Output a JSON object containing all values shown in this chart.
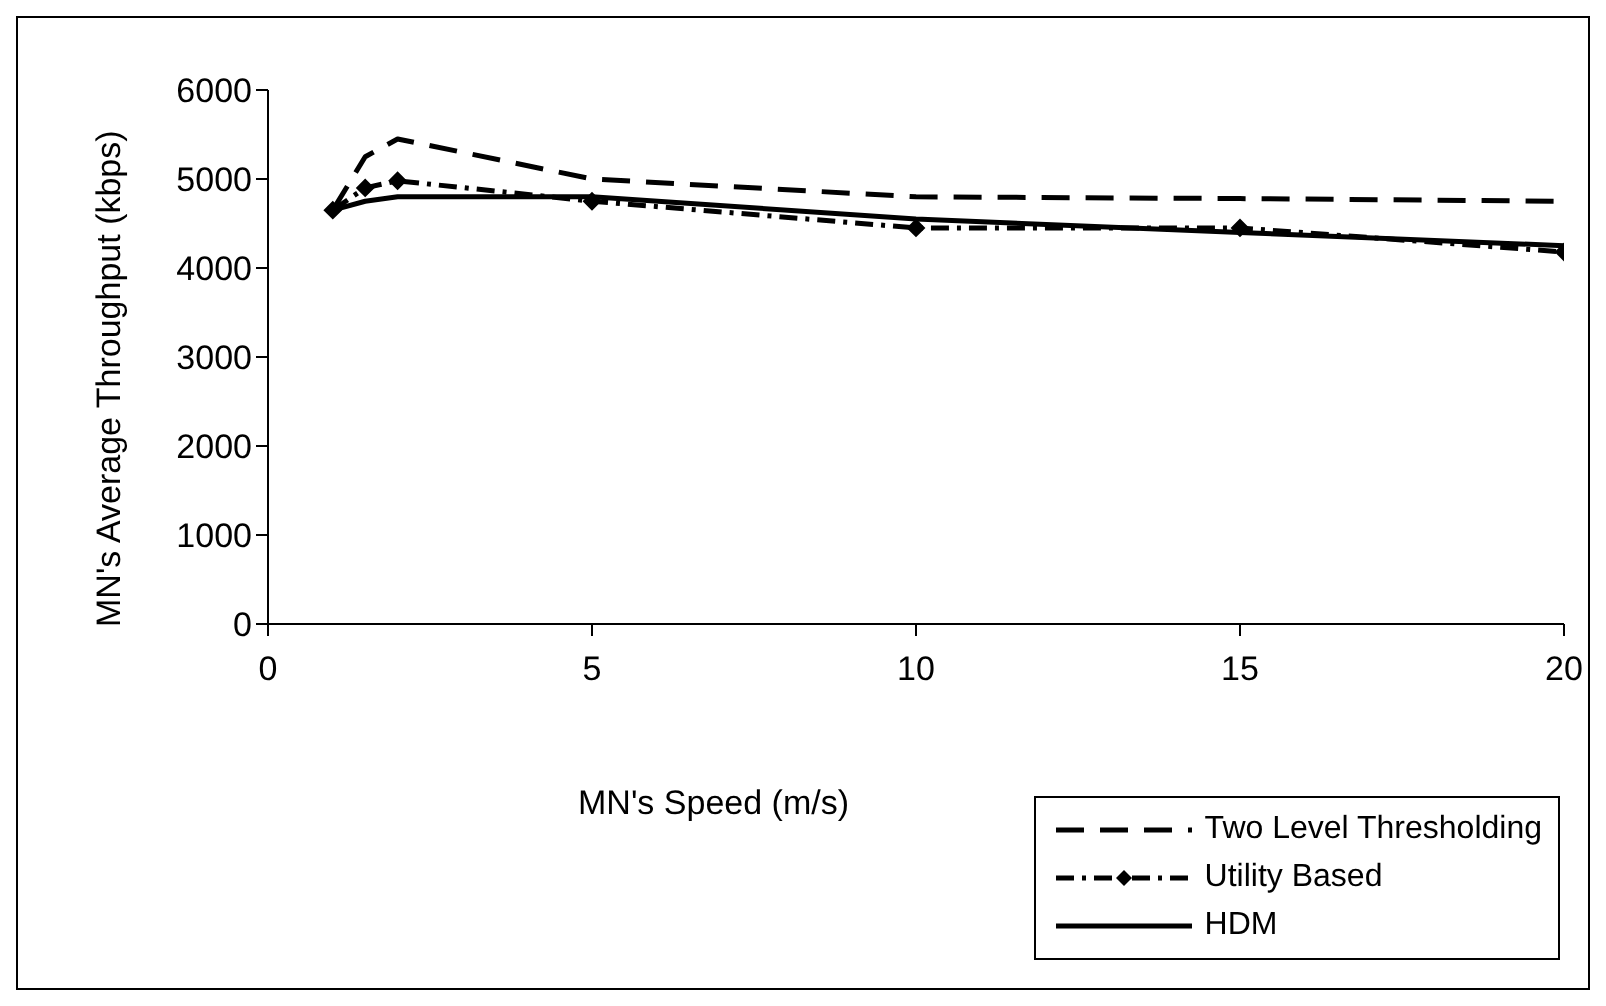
{
  "chart_data": {
    "type": "line",
    "xlabel": "MN's Speed (m/s)",
    "ylabel": "MN's Average Throughput (kbps)",
    "x": [
      1,
      1.5,
      2,
      5,
      10,
      15,
      20
    ],
    "series": [
      {
        "name": "Two Level Thresholding",
        "color": "#000000",
        "line_style": "dashed",
        "marker": "none",
        "values": [
          4650,
          5250,
          5450,
          5000,
          4800,
          4780,
          4750
        ]
      },
      {
        "name": "Utility Based",
        "color": "#000000",
        "line_style": "dotted",
        "marker": "diamond",
        "values": [
          4650,
          4900,
          4980,
          4750,
          4450,
          4450,
          4180
        ]
      },
      {
        "name": "HDM",
        "color": "#000000",
        "line_style": "solid",
        "marker": "none",
        "values": [
          4650,
          4750,
          4800,
          4800,
          4550,
          4400,
          4250
        ]
      }
    ],
    "xlim": [
      0,
      20
    ],
    "xticks": [
      0,
      5,
      10,
      15,
      20
    ],
    "ylim": [
      0,
      6000
    ],
    "yticks": [
      0,
      1000,
      2000,
      3000,
      4000,
      5000,
      6000
    ],
    "grid": false,
    "legend": "bottom right"
  }
}
